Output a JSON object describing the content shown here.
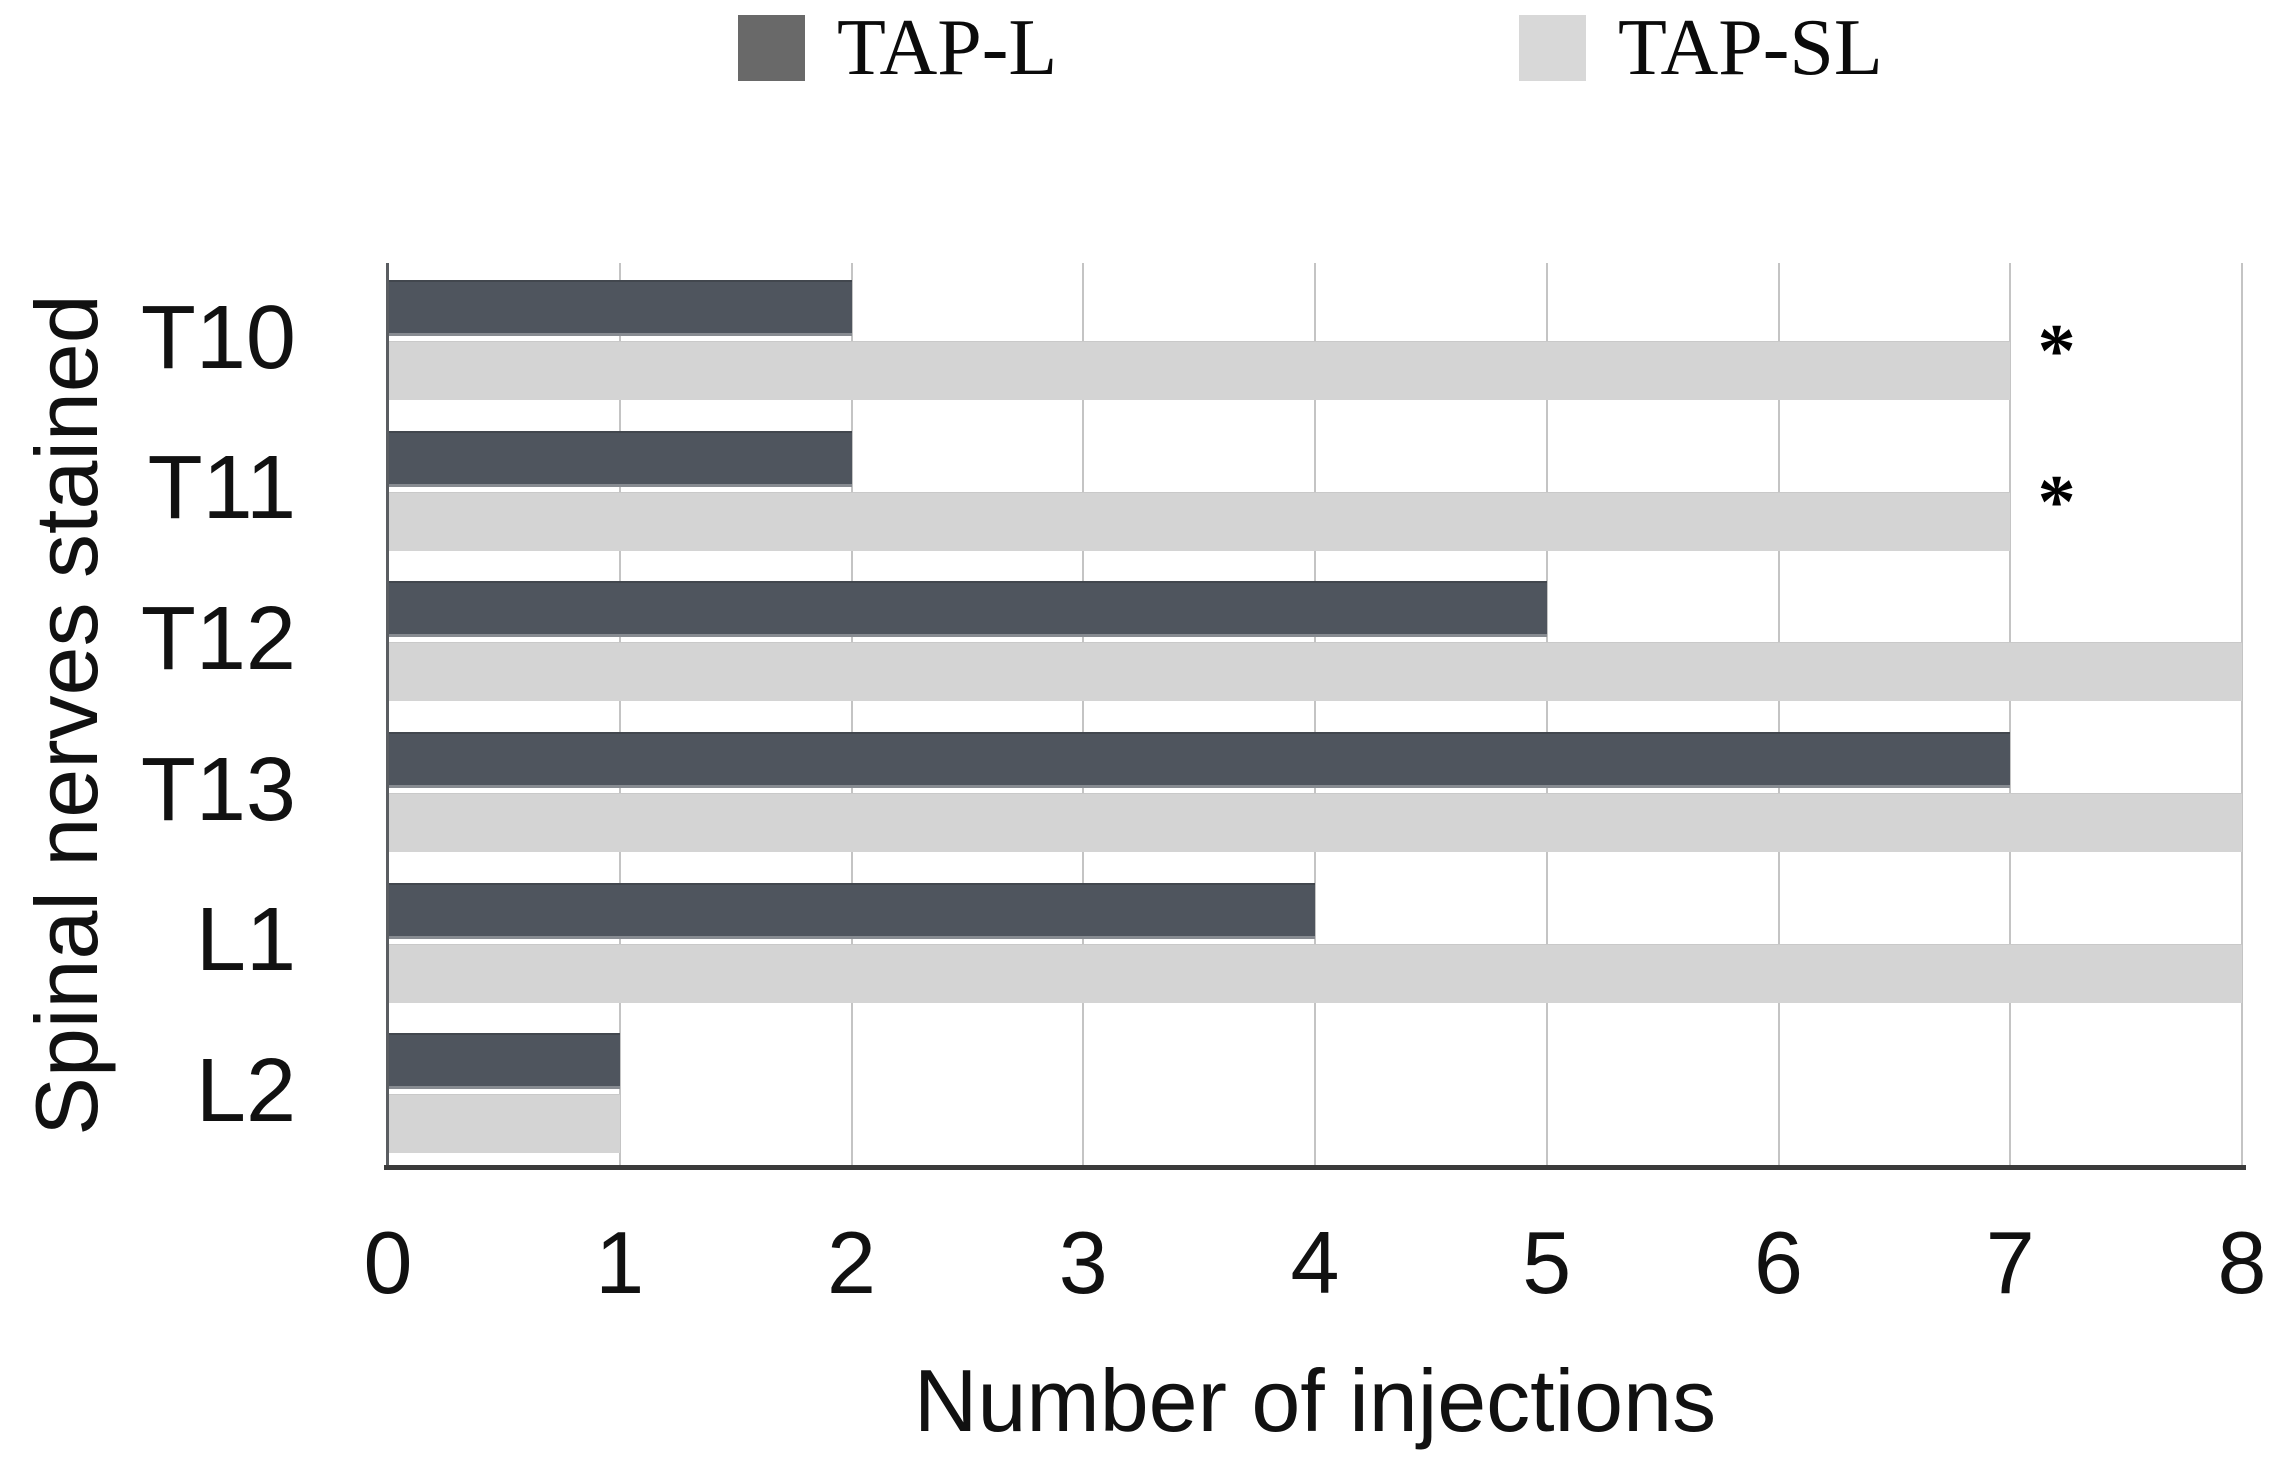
{
  "legend": {
    "items": [
      {
        "label": "TAP-L",
        "swatch_color": "#696969"
      },
      {
        "label": "TAP-SL",
        "swatch_color": "#d8d8d8"
      }
    ]
  },
  "chart_data": {
    "type": "bar",
    "orientation": "horizontal",
    "title": "",
    "xlabel": "Number of injections",
    "ylabel": "Spinal nerves stained",
    "categories": [
      "T10",
      "T11",
      "T12",
      "T13",
      "L1",
      "L2"
    ],
    "series": [
      {
        "name": "TAP-L",
        "color": "#4f555e",
        "values": [
          2,
          2,
          5,
          7,
          4,
          1
        ]
      },
      {
        "name": "TAP-SL",
        "color": "#d4d4d4",
        "values": [
          7,
          7,
          8,
          8,
          8,
          1
        ]
      }
    ],
    "significance_markers": [
      {
        "category": "T10",
        "symbol": "*",
        "x": 7.2
      },
      {
        "category": "T11",
        "symbol": "*",
        "x": 7.2
      }
    ],
    "xlim": [
      0,
      8
    ],
    "xticks": [
      "0",
      "1",
      "2",
      "3",
      "4",
      "5",
      "6",
      "7",
      "8"
    ],
    "grid": "vertical",
    "gridline_color": "#c4c4c4",
    "legend_position": "top"
  }
}
